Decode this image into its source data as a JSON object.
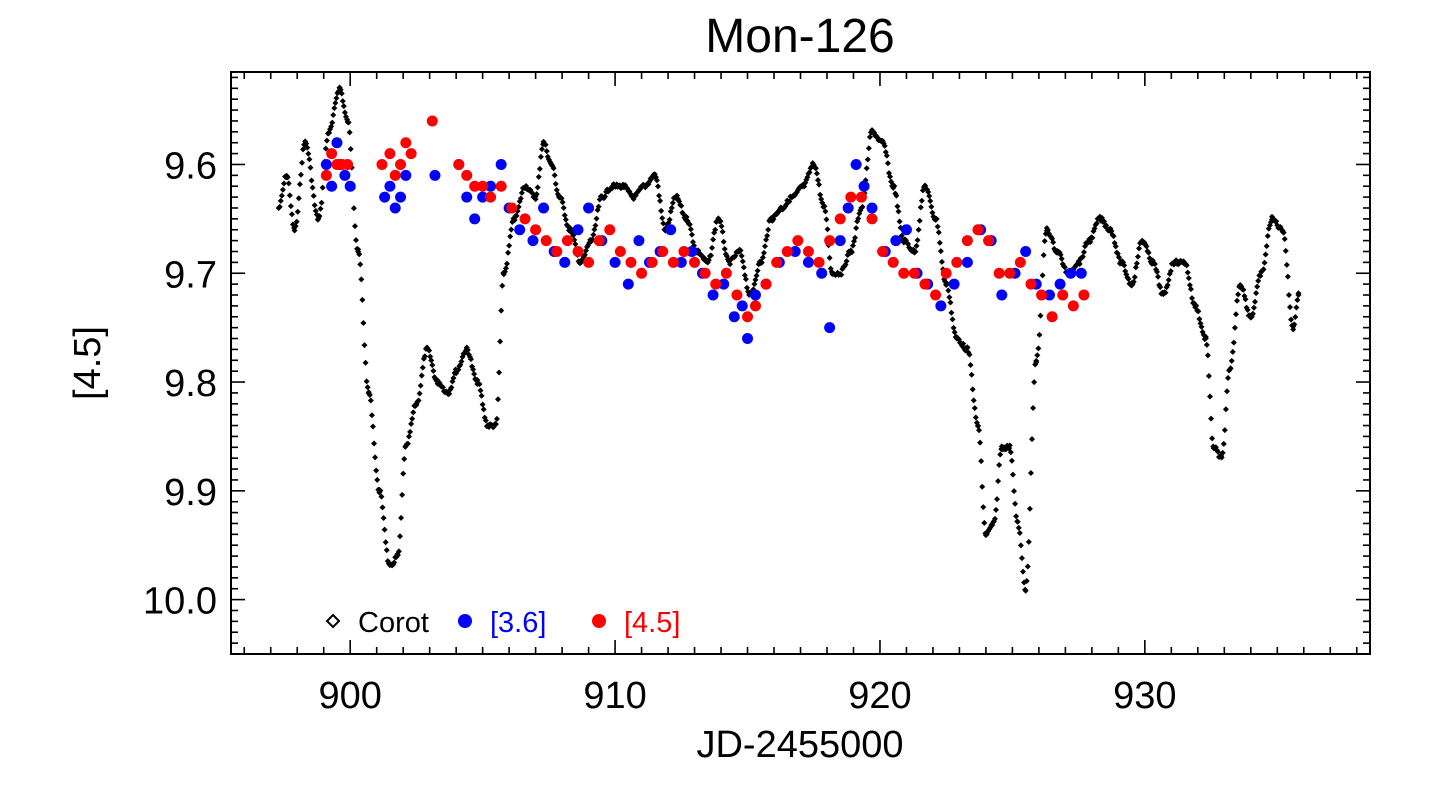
{
  "chart_data": {
    "type": "scatter",
    "title": "Mon-126",
    "xlabel": "JD-2455000",
    "ylabel": "[4.5]",
    "xlim": [
      895.5,
      938.5
    ],
    "ylim": [
      10.05,
      9.515
    ],
    "y_inverted": true,
    "x_ticks": [
      900,
      910,
      920,
      930
    ],
    "x_tick_labels": [
      "900",
      "910",
      "920",
      "930"
    ],
    "y_ticks": [
      9.6,
      9.7,
      9.8,
      9.9,
      10.0
    ],
    "y_tick_labels": [
      "9.6",
      "9.7",
      "9.8",
      "9.9",
      "10.0"
    ],
    "legend_position": "bottom-left",
    "colors": {
      "corot": "#000000",
      "irac36": "#0000ff",
      "irac45": "#ff0000"
    },
    "series": [
      {
        "name": "Corot",
        "marker": "diamond",
        "color": "#000000",
        "sampling_step": 0.04,
        "x": [
          897.3,
          897.6,
          897.9,
          898.3,
          898.8,
          899.2,
          899.6,
          899.9,
          900.3,
          900.7,
          901.1,
          901.5,
          901.8,
          902.1,
          902.5,
          902.9,
          903.3,
          903.7,
          904.0,
          904.4,
          904.8,
          905.2,
          905.5,
          905.8,
          906.2,
          906.6,
          907.0,
          907.3,
          907.6,
          907.9,
          908.3,
          908.7,
          909.1,
          909.5,
          909.9,
          910.3,
          910.7,
          911.1,
          911.5,
          911.9,
          912.3,
          912.7,
          913.1,
          913.5,
          913.9,
          914.3,
          914.7,
          915.1,
          915.5,
          915.9,
          916.3,
          916.7,
          917.1,
          917.5,
          917.9,
          918.2,
          918.5,
          918.9,
          919.3,
          919.7,
          920.1,
          920.5,
          920.9,
          921.3,
          921.7,
          922.1,
          922.5,
          922.9,
          923.3,
          923.7,
          924.0,
          924.3,
          924.6,
          924.9,
          925.2,
          925.5,
          925.9,
          926.3,
          926.7,
          927.1,
          927.5,
          927.9,
          928.3,
          928.7,
          929.1,
          929.5,
          929.9,
          930.3,
          930.7,
          931.1,
          931.5,
          931.9,
          932.3,
          932.6,
          932.9,
          933.2,
          933.6,
          934.0,
          934.4,
          934.8,
          935.2,
          935.6,
          935.8
        ],
        "y": [
          9.64,
          9.61,
          9.66,
          9.58,
          9.65,
          9.57,
          9.53,
          9.56,
          9.68,
          9.81,
          9.9,
          9.97,
          9.96,
          9.86,
          9.82,
          9.77,
          9.8,
          9.81,
          9.79,
          9.77,
          9.8,
          9.84,
          9.84,
          9.7,
          9.65,
          9.62,
          9.63,
          9.58,
          9.6,
          9.63,
          9.66,
          9.69,
          9.67,
          9.63,
          9.62,
          9.62,
          9.63,
          9.62,
          9.61,
          9.66,
          9.63,
          9.65,
          9.68,
          9.69,
          9.65,
          9.69,
          9.68,
          9.72,
          9.69,
          9.65,
          9.64,
          9.63,
          9.62,
          9.6,
          9.64,
          9.7,
          9.7,
          9.68,
          9.64,
          9.57,
          9.58,
          9.62,
          9.67,
          9.68,
          9.62,
          9.65,
          9.71,
          9.76,
          9.77,
          9.84,
          9.94,
          9.93,
          9.86,
          9.86,
          9.93,
          9.99,
          9.78,
          9.66,
          9.68,
          9.7,
          9.69,
          9.67,
          9.65,
          9.66,
          9.69,
          9.71,
          9.67,
          9.69,
          9.72,
          9.69,
          9.69,
          9.73,
          9.76,
          9.86,
          9.87,
          9.79,
          9.71,
          9.74,
          9.7,
          9.65,
          9.66,
          9.75,
          9.72
        ]
      },
      {
        "name": "[3.6]",
        "marker": "filled-circle",
        "color": "#0000ff",
        "x": [
          899.1,
          899.3,
          899.5,
          899.6,
          899.8,
          900.0,
          901.3,
          901.5,
          901.7,
          901.9,
          902.1,
          903.2,
          904.1,
          904.4,
          904.7,
          905.0,
          905.3,
          905.7,
          906.0,
          906.4,
          906.9,
          907.3,
          907.7,
          908.1,
          908.6,
          909.0,
          909.5,
          910.0,
          910.5,
          910.9,
          911.3,
          911.7,
          912.1,
          912.5,
          912.9,
          913.3,
          913.7,
          914.1,
          914.5,
          914.8,
          915.0,
          915.3,
          915.7,
          916.2,
          916.8,
          917.3,
          917.8,
          918.1,
          918.5,
          918.8,
          919.1,
          919.4,
          919.7,
          920.2,
          920.6,
          921.0,
          921.4,
          921.8,
          922.3,
          922.8,
          923.3,
          923.8,
          924.2,
          924.6,
          925.1,
          925.5,
          925.9,
          926.4,
          926.8,
          927.2,
          927.6
        ],
        "y": [
          9.6,
          9.62,
          9.58,
          9.6,
          9.61,
          9.62,
          9.63,
          9.62,
          9.64,
          9.63,
          9.61,
          9.61,
          9.6,
          9.63,
          9.65,
          9.63,
          9.62,
          9.6,
          9.64,
          9.66,
          9.67,
          9.64,
          9.68,
          9.69,
          9.66,
          9.64,
          9.67,
          9.69,
          9.71,
          9.67,
          9.69,
          9.68,
          9.66,
          9.69,
          9.68,
          9.7,
          9.72,
          9.71,
          9.74,
          9.73,
          9.76,
          9.72,
          9.71,
          9.69,
          9.68,
          9.69,
          9.7,
          9.75,
          9.67,
          9.64,
          9.6,
          9.62,
          9.64,
          9.68,
          9.67,
          9.66,
          9.7,
          9.71,
          9.73,
          9.71,
          9.69,
          9.66,
          9.67,
          9.72,
          9.7,
          9.68,
          9.71,
          9.72,
          9.71,
          9.7,
          9.7
        ]
      },
      {
        "name": "[4.5]",
        "marker": "filled-circle",
        "color": "#ff0000",
        "x": [
          899.1,
          899.3,
          899.5,
          899.7,
          899.9,
          901.2,
          901.5,
          901.7,
          901.9,
          902.1,
          902.3,
          903.1,
          904.1,
          904.4,
          904.7,
          905.0,
          905.3,
          905.7,
          906.1,
          906.6,
          907.0,
          907.4,
          907.8,
          908.2,
          908.6,
          909.0,
          909.4,
          909.8,
          910.2,
          910.6,
          911.0,
          911.4,
          911.8,
          912.2,
          912.6,
          913.0,
          913.4,
          913.8,
          914.2,
          914.6,
          915.0,
          915.3,
          915.7,
          916.1,
          916.5,
          916.9,
          917.3,
          917.7,
          918.1,
          918.5,
          918.9,
          919.3,
          919.7,
          920.1,
          920.5,
          920.9,
          921.3,
          921.7,
          922.1,
          922.5,
          922.9,
          923.3,
          923.7,
          924.1,
          924.5,
          924.9,
          925.3,
          925.7,
          926.1,
          926.5,
          926.9,
          927.3,
          927.7
        ],
        "y": [
          9.61,
          9.59,
          9.6,
          9.6,
          9.6,
          9.6,
          9.59,
          9.61,
          9.6,
          9.58,
          9.59,
          9.56,
          9.6,
          9.61,
          9.62,
          9.62,
          9.63,
          9.62,
          9.64,
          9.65,
          9.66,
          9.67,
          9.68,
          9.67,
          9.68,
          9.69,
          9.67,
          9.66,
          9.68,
          9.69,
          9.7,
          9.69,
          9.68,
          9.69,
          9.68,
          9.69,
          9.7,
          9.71,
          9.7,
          9.72,
          9.74,
          9.73,
          9.71,
          9.69,
          9.68,
          9.67,
          9.68,
          9.69,
          9.67,
          9.65,
          9.63,
          9.63,
          9.65,
          9.68,
          9.69,
          9.7,
          9.7,
          9.71,
          9.72,
          9.7,
          9.69,
          9.67,
          9.66,
          9.67,
          9.7,
          9.7,
          9.69,
          9.71,
          9.72,
          9.74,
          9.72,
          9.73,
          9.72
        ]
      }
    ]
  }
}
